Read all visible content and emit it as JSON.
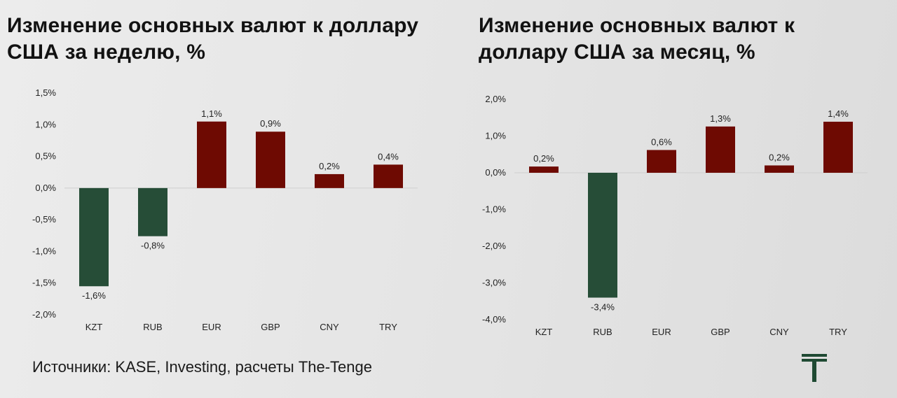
{
  "colors": {
    "positive": "#6e0a02",
    "negative": "#264d37",
    "logo": "#1f4a33"
  },
  "left_chart": {
    "title": "Изменение основных валют к доллару США за неделю, %"
  },
  "right_chart": {
    "title": "Изменение основных валют к доллару США за месяц, %"
  },
  "chart_data": [
    {
      "type": "bar",
      "title": "Изменение основных валют к доллару США за неделю, %",
      "categories": [
        "KZT",
        "RUB",
        "EUR",
        "GBP",
        "CNY",
        "TRY"
      ],
      "values": [
        -1.55,
        -0.76,
        1.05,
        0.89,
        0.22,
        0.37
      ],
      "data_labels": [
        "-1,6%",
        "-0,8%",
        "1,1%",
        "0,9%",
        "0,2%",
        "0,4%"
      ],
      "yticks": [
        "1,5%",
        "1,0%",
        "0,5%",
        "0,0%",
        "-0,5%",
        "-1,0%",
        "-1,5%",
        "-2,0%"
      ],
      "ylim": [
        -2.0,
        1.5
      ],
      "xlabel": "",
      "ylabel": "",
      "grid": false,
      "legend": "none"
    },
    {
      "type": "bar",
      "title": "Изменение основных валют к доллару США за месяц, %",
      "categories": [
        "KZT",
        "RUB",
        "EUR",
        "GBP",
        "CNY",
        "TRY"
      ],
      "values": [
        0.17,
        -3.4,
        0.62,
        1.26,
        0.2,
        1.39
      ],
      "data_labels": [
        "0,2%",
        "-3,4%",
        "0,6%",
        "1,3%",
        "0,2%",
        "1,4%"
      ],
      "yticks": [
        "2,0%",
        "1,0%",
        "0,0%",
        "-1,0%",
        "-2,0%",
        "-3,0%",
        "-4,0%"
      ],
      "ylim": [
        -4.0,
        2.0
      ],
      "xlabel": "",
      "ylabel": "",
      "grid": false,
      "legend": "none"
    }
  ],
  "footer": {
    "source": "Источники: KASE, Investing, расчеты The-Tenge"
  },
  "logo": {
    "icon": "the-tenge-t-logo"
  }
}
